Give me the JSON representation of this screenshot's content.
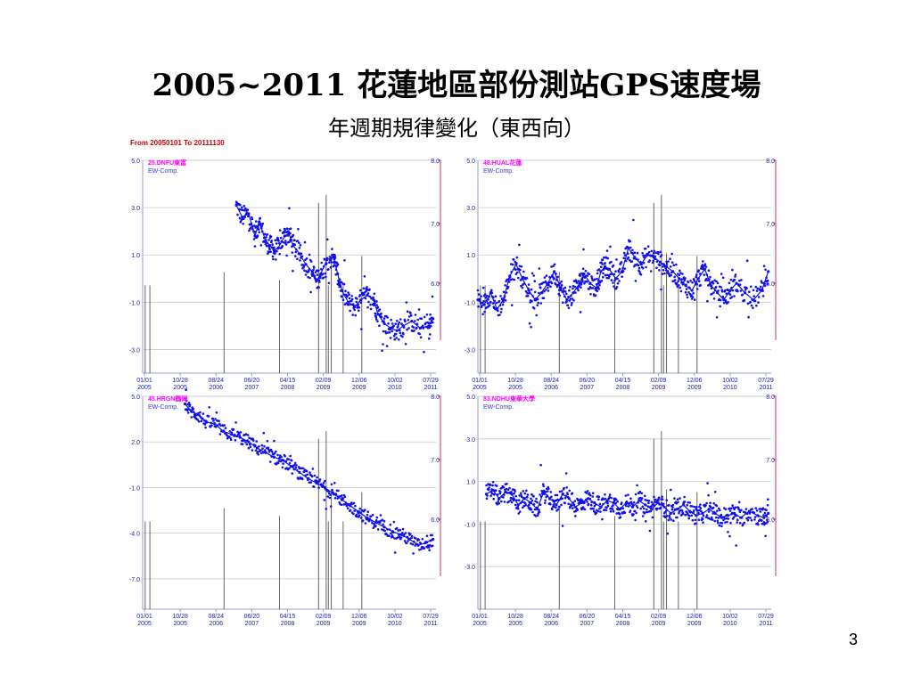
{
  "slide": {
    "title": "2005~2011 花蓮地區部份測站GPS速度場",
    "subtitle": "年週期規律變化（東西向）",
    "date_range": "From 20050101 To  20111130",
    "page_number": "3"
  },
  "colors": {
    "series": "#1010ee",
    "station_label": "#ff00ff",
    "comp_label": "#3333ff",
    "axis_text": "#1a1aa0",
    "right_axis": "#cc3366",
    "grid": "#c8c8c8",
    "events": "#555555"
  },
  "x_ticks": [
    {
      "top": "01/01",
      "bottom": "2005"
    },
    {
      "top": "10/28",
      "bottom": "2005"
    },
    {
      "top": "08/24",
      "bottom": "2006"
    },
    {
      "top": "06/20",
      "bottom": "2007"
    },
    {
      "top": "04/15",
      "bottom": "2008"
    },
    {
      "top": "02/09",
      "bottom": "2009"
    },
    {
      "top": "12/06",
      "bottom": "2009"
    },
    {
      "top": "10/02",
      "bottom": "2010"
    },
    {
      "top": "07/29",
      "bottom": "2011"
    }
  ],
  "chart_data": [
    {
      "type": "scatter",
      "station": "25.DNFU東富",
      "component": "EW-Comp.",
      "x_range": [
        2005.0,
        2011.92
      ],
      "ylim": [
        -4.0,
        5.0
      ],
      "y_ticks": [
        "5.0",
        "3.0",
        "1.0",
        "-1.0",
        "-3.0"
      ],
      "right_axis_ticks": [
        "8.0",
        "7.0",
        "6.0"
      ],
      "events": [
        {
          "t": 2005.06,
          "h": 3.3
        },
        {
          "t": 2005.17,
          "h": 3.3
        },
        {
          "t": 2006.92,
          "h": 3.8
        },
        {
          "t": 2008.23,
          "h": 3.5
        },
        {
          "t": 2009.15,
          "h": 6.4
        },
        {
          "t": 2009.33,
          "h": 6.7
        },
        {
          "t": 2009.38,
          "h": 3.3
        },
        {
          "t": 2009.45,
          "h": 4.5
        },
        {
          "t": 2009.73,
          "h": 3.3
        },
        {
          "t": 2010.17,
          "h": 4.4
        }
      ],
      "series": [
        {
          "values": [
            [
              2007.21,
              3.1
            ],
            [
              2007.35,
              2.6
            ],
            [
              2007.5,
              2.75
            ],
            [
              2007.65,
              1.8
            ],
            [
              2007.75,
              2.4
            ],
            [
              2007.9,
              1.6
            ],
            [
              2008.0,
              1.4
            ],
            [
              2008.1,
              1.2
            ],
            [
              2008.2,
              1.3
            ],
            [
              2008.35,
              1.8
            ],
            [
              2008.45,
              1.9
            ],
            [
              2008.55,
              1.4
            ],
            [
              2008.7,
              1.05
            ],
            [
              2008.85,
              0.6
            ],
            [
              2009.0,
              0.3
            ],
            [
              2009.1,
              -0.1
            ],
            [
              2009.2,
              0.2
            ],
            [
              2009.35,
              0.8
            ],
            [
              2009.5,
              0.9
            ],
            [
              2009.6,
              0.2
            ],
            [
              2009.7,
              -0.5
            ],
            [
              2009.85,
              -1.0
            ],
            [
              2010.0,
              -1.2
            ],
            [
              2010.15,
              -0.9
            ],
            [
              2010.3,
              -0.7
            ],
            [
              2010.45,
              -0.9
            ],
            [
              2010.55,
              -1.5
            ],
            [
              2010.7,
              -1.9
            ],
            [
              2010.85,
              -2.1
            ],
            [
              2011.0,
              -2.2
            ],
            [
              2011.15,
              -2.0
            ],
            [
              2011.35,
              -1.8
            ],
            [
              2011.55,
              -2.1
            ],
            [
              2011.75,
              -2.0
            ],
            [
              2011.85,
              -1.7
            ]
          ]
        }
      ]
    },
    {
      "type": "scatter",
      "station": "48.HUAL花蓮",
      "component": "EW-Comp.",
      "x_range": [
        2005.0,
        2011.92
      ],
      "ylim": [
        -4.0,
        5.0
      ],
      "y_ticks": [
        "5.0",
        "3.0",
        "1.0",
        "-1.0",
        "-3.0"
      ],
      "right_axis_ticks": [
        "8.0",
        "7.0",
        "6.0"
      ],
      "events": [
        {
          "t": 2005.06,
          "h": 3.3
        },
        {
          "t": 2005.17,
          "h": 3.3
        },
        {
          "t": 2006.92,
          "h": 3.8
        },
        {
          "t": 2008.23,
          "h": 3.5
        },
        {
          "t": 2009.15,
          "h": 6.4
        },
        {
          "t": 2009.33,
          "h": 6.7
        },
        {
          "t": 2009.38,
          "h": 3.3
        },
        {
          "t": 2009.45,
          "h": 4.5
        },
        {
          "t": 2009.73,
          "h": 3.3
        },
        {
          "t": 2010.17,
          "h": 4.4
        }
      ],
      "series": [
        {
          "values": [
            [
              2005.0,
              -0.9
            ],
            [
              2005.15,
              -1.1
            ],
            [
              2005.3,
              -0.6
            ],
            [
              2005.45,
              -1.3
            ],
            [
              2005.6,
              -0.9
            ],
            [
              2005.75,
              0.1
            ],
            [
              2005.9,
              0.6
            ],
            [
              2006.05,
              0.0
            ],
            [
              2006.2,
              -0.5
            ],
            [
              2006.35,
              -0.9
            ],
            [
              2006.5,
              -0.6
            ],
            [
              2006.65,
              -0.2
            ],
            [
              2006.8,
              0.3
            ],
            [
              2006.95,
              -0.4
            ],
            [
              2007.1,
              -0.9
            ],
            [
              2007.25,
              -0.6
            ],
            [
              2007.4,
              -0.2
            ],
            [
              2007.5,
              0.2
            ],
            [
              2007.65,
              -0.2
            ],
            [
              2007.8,
              -0.4
            ],
            [
              2007.9,
              0.3
            ],
            [
              2008.0,
              0.5
            ],
            [
              2008.1,
              0.4
            ],
            [
              2008.25,
              0.0
            ],
            [
              2008.4,
              0.3
            ],
            [
              2008.55,
              1.3
            ],
            [
              2008.7,
              0.9
            ],
            [
              2008.85,
              0.6
            ],
            [
              2009.0,
              1.0
            ],
            [
              2009.15,
              0.9
            ],
            [
              2009.3,
              0.7
            ],
            [
              2009.45,
              0.5
            ],
            [
              2009.6,
              0.3
            ],
            [
              2009.75,
              0.0
            ],
            [
              2009.9,
              -0.3
            ],
            [
              2010.05,
              -0.5
            ],
            [
              2010.2,
              0.0
            ],
            [
              2010.35,
              0.4
            ],
            [
              2010.5,
              -0.3
            ],
            [
              2010.65,
              -0.6
            ],
            [
              2010.8,
              -0.9
            ],
            [
              2010.95,
              -0.5
            ],
            [
              2011.1,
              -0.2
            ],
            [
              2011.3,
              -0.6
            ],
            [
              2011.5,
              -0.9
            ],
            [
              2011.7,
              -0.5
            ],
            [
              2011.85,
              0.3
            ]
          ]
        }
      ]
    },
    {
      "type": "scatter",
      "station": "45.HRGN鶴岡",
      "component": "EW-Comp.",
      "x_range": [
        2005.0,
        2011.92
      ],
      "ylim": [
        -9.0,
        5.0
      ],
      "y_ticks": [
        "5.0",
        "2.0",
        "-1.0",
        "-4.0",
        "-7.0"
      ],
      "right_axis_ticks": [
        "8.0",
        "7.0",
        "6.0"
      ],
      "events": [
        {
          "t": 2005.06,
          "h": 3.3
        },
        {
          "t": 2005.17,
          "h": 3.3
        },
        {
          "t": 2006.92,
          "h": 3.8
        },
        {
          "t": 2008.23,
          "h": 3.5
        },
        {
          "t": 2009.15,
          "h": 6.4
        },
        {
          "t": 2009.33,
          "h": 6.7
        },
        {
          "t": 2009.38,
          "h": 3.3
        },
        {
          "t": 2009.45,
          "h": 4.5
        },
        {
          "t": 2009.73,
          "h": 3.3
        },
        {
          "t": 2010.17,
          "h": 4.4
        }
      ],
      "series": [
        {
          "values": [
            [
              2006.0,
              4.5
            ],
            [
              2006.15,
              4.0
            ],
            [
              2006.3,
              3.8
            ],
            [
              2006.5,
              3.3
            ],
            [
              2006.7,
              3.2
            ],
            [
              2006.9,
              2.7
            ],
            [
              2007.1,
              2.5
            ],
            [
              2007.3,
              2.3
            ],
            [
              2007.5,
              2.0
            ],
            [
              2007.7,
              1.6
            ],
            [
              2007.9,
              1.3
            ],
            [
              2008.1,
              1.0
            ],
            [
              2008.3,
              0.8
            ],
            [
              2008.5,
              0.4
            ],
            [
              2008.7,
              0.0
            ],
            [
              2008.9,
              -0.4
            ],
            [
              2009.1,
              -0.7
            ],
            [
              2009.3,
              -1.0
            ],
            [
              2009.5,
              -1.4
            ],
            [
              2009.7,
              -1.8
            ],
            [
              2009.9,
              -2.2
            ],
            [
              2010.1,
              -2.6
            ],
            [
              2010.3,
              -3.0
            ],
            [
              2010.5,
              -3.3
            ],
            [
              2010.7,
              -3.6
            ],
            [
              2010.9,
              -3.9
            ],
            [
              2011.1,
              -4.1
            ],
            [
              2011.3,
              -4.4
            ],
            [
              2011.5,
              -4.8
            ],
            [
              2011.7,
              -4.6
            ],
            [
              2011.85,
              -4.4
            ]
          ]
        }
      ]
    },
    {
      "type": "scatter",
      "station": "83.NDHU東華大學",
      "component": "EW-Comp.",
      "x_range": [
        2005.0,
        2011.92
      ],
      "ylim": [
        -5.0,
        5.0
      ],
      "y_ticks": [
        "5.0",
        "3.0",
        "1.0",
        "-1.0",
        "-3.0"
      ],
      "right_axis_ticks": [
        "8.0",
        "7.0",
        "6.0"
      ],
      "events": [
        {
          "t": 2005.06,
          "h": 3.3
        },
        {
          "t": 2005.17,
          "h": 3.3
        },
        {
          "t": 2006.92,
          "h": 3.8
        },
        {
          "t": 2008.23,
          "h": 3.5
        },
        {
          "t": 2009.15,
          "h": 6.4
        },
        {
          "t": 2009.33,
          "h": 6.7
        },
        {
          "t": 2009.38,
          "h": 3.3
        },
        {
          "t": 2009.45,
          "h": 4.5
        },
        {
          "t": 2009.73,
          "h": 3.3
        },
        {
          "t": 2010.17,
          "h": 4.4
        }
      ],
      "series": [
        {
          "values": [
            [
              2005.2,
              0.4
            ],
            [
              2005.35,
              0.6
            ],
            [
              2005.5,
              0.2
            ],
            [
              2005.65,
              0.5
            ],
            [
              2005.8,
              0.4
            ],
            [
              2005.95,
              -0.1
            ],
            [
              2006.1,
              0.2
            ],
            [
              2006.25,
              0.0
            ],
            [
              2006.4,
              -0.3
            ],
            [
              2006.55,
              0.5
            ],
            [
              2006.7,
              0.2
            ],
            [
              2006.85,
              -0.1
            ],
            [
              2007.0,
              0.4
            ],
            [
              2007.15,
              0.2
            ],
            [
              2007.3,
              -0.2
            ],
            [
              2007.45,
              0.0
            ],
            [
              2007.6,
              0.2
            ],
            [
              2007.75,
              0.0
            ],
            [
              2007.9,
              -0.2
            ],
            [
              2008.05,
              0.1
            ],
            [
              2008.2,
              0.0
            ],
            [
              2008.35,
              -0.3
            ],
            [
              2008.5,
              0.0
            ],
            [
              2008.65,
              -0.2
            ],
            [
              2008.8,
              0.1
            ],
            [
              2008.95,
              -0.1
            ],
            [
              2009.1,
              -0.3
            ],
            [
              2009.25,
              0.0
            ],
            [
              2009.4,
              -0.2
            ],
            [
              2009.55,
              -0.5
            ],
            [
              2009.7,
              -0.3
            ],
            [
              2009.85,
              -0.1
            ],
            [
              2010.0,
              -0.4
            ],
            [
              2010.15,
              -0.6
            ],
            [
              2010.3,
              -0.5
            ],
            [
              2010.45,
              -0.3
            ],
            [
              2010.6,
              -0.5
            ],
            [
              2010.75,
              -0.7
            ],
            [
              2010.9,
              -0.6
            ],
            [
              2011.05,
              -0.5
            ],
            [
              2011.2,
              -0.7
            ],
            [
              2011.4,
              -0.4
            ],
            [
              2011.6,
              -0.6
            ],
            [
              2011.75,
              -0.7
            ],
            [
              2011.85,
              -0.5
            ]
          ]
        }
      ]
    }
  ]
}
